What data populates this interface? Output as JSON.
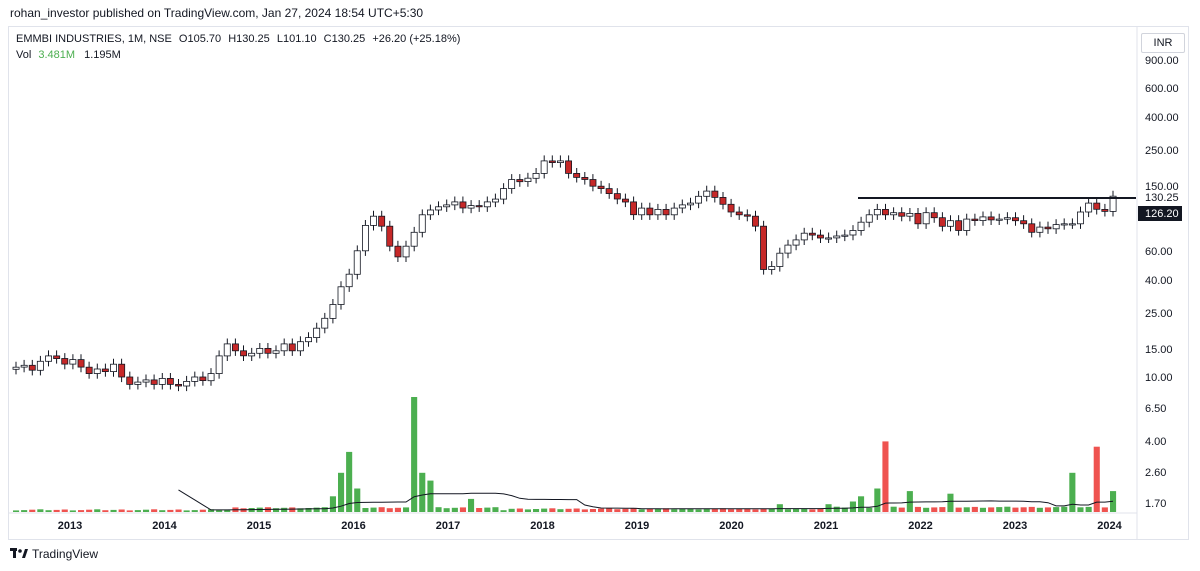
{
  "header": {
    "published": "rohan_investor published on TradingView.com, Jan 27, 2024 18:54 UTC+5:30"
  },
  "legend": {
    "symbol": "EMMBI INDUSTRIES, 1M, NSE",
    "open": "O105.70",
    "high": "H130.25",
    "low": "L101.10",
    "close": "C130.25",
    "change": "+26.20 (+25.18%)",
    "vol_label": "Vol",
    "vol_value": "3.481M",
    "vol_ma": "1.195M"
  },
  "currency": "INR",
  "branding": "TradingView",
  "colors": {
    "up": "#ffffff",
    "up_border": "#131722",
    "down": "#c62828",
    "vol_up": "#4caf50",
    "vol_down": "#ef5350",
    "ma": "#131722"
  },
  "chart_data": {
    "type": "candlestick",
    "timeframe": "1M",
    "price_scale": "log",
    "price_ticks": [
      "900.00",
      "600.00",
      "400.00",
      "250.00",
      "150.00",
      "130.25",
      "126.20",
      "60.00",
      "40.00",
      "25.00",
      "15.00",
      "10.00",
      "6.50",
      "4.00",
      "2.60",
      "1.70"
    ],
    "price_tick_values": [
      900,
      600,
      400,
      250,
      150,
      null,
      null,
      60,
      40,
      25,
      15,
      10,
      6.5,
      4,
      2.6,
      1.7
    ],
    "last_price_label": "130.25",
    "marker_label": "126.20",
    "x_ticks": [
      "2013",
      "2014",
      "2015",
      "2016",
      "2017",
      "2018",
      "2019",
      "2020",
      "2021",
      "2022",
      "2023",
      "2024"
    ],
    "resistance_level": 130.25,
    "closes": [
      11.5,
      11.8,
      11.0,
      12.5,
      13.5,
      13.0,
      12.0,
      12.8,
      11.5,
      10.5,
      11.2,
      10.8,
      12.0,
      10.0,
      9.0,
      9.3,
      9.6,
      9.0,
      9.8,
      9.0,
      8.8,
      9.4,
      10.0,
      9.5,
      10.5,
      13.5,
      16.0,
      14.5,
      13.5,
      14.0,
      15.0,
      14.0,
      14.5,
      16.0,
      14.5,
      16.5,
      17.5,
      20.0,
      23.0,
      28.0,
      36.0,
      43.0,
      60.0,
      86.0,
      98.0,
      85.0,
      64.0,
      55.0,
      64.0,
      78.0,
      100.0,
      107.0,
      112.0,
      115.0,
      120.0,
      110.0,
      114.0,
      112.0,
      120.0,
      125.0,
      145.0,
      165.0,
      160.0,
      168.0,
      180.0,
      215.0,
      210.0,
      215.0,
      180.0,
      170.0,
      165.0,
      150.0,
      145.0,
      135.0,
      125.0,
      120.0,
      100.0,
      110.0,
      100.0,
      108.0,
      100.0,
      110.0,
      115.0,
      118.0,
      130.0,
      140.0,
      128.0,
      116.0,
      104.0,
      100.0,
      98.0,
      85.0,
      46.0,
      48.0,
      58.0,
      65.0,
      70.0,
      77.0,
      75.0,
      72.0,
      72.0,
      74.0,
      75.0,
      80.0,
      90.0,
      100.0,
      108.0,
      100.0,
      103.0,
      98.0,
      102.0,
      88.0,
      103.0,
      96.0,
      85.0,
      92.0,
      80.0,
      94.0,
      92.0,
      97.0,
      93.0,
      94.0,
      96.0,
      92.0,
      88.0,
      78.0,
      84.0,
      82.0,
      87.0,
      88.0,
      88.0,
      104.0,
      118.0,
      108.0,
      105.0,
      130.25
    ],
    "volume_ticks": [
      "6.50",
      "4.00",
      "2.60",
      "1.70"
    ]
  }
}
